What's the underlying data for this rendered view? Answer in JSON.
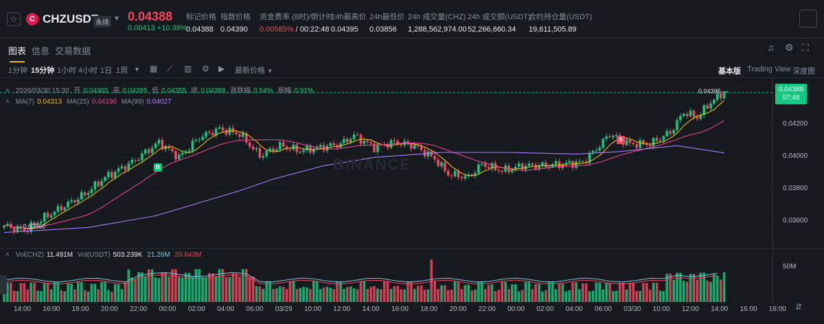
{
  "header": {
    "star_icon": "star-icon",
    "coin_glyph": "C",
    "symbol": "CHZUSDT",
    "contract_type": "永续",
    "last_price": "0.04388",
    "change_abs": "0.00413",
    "change_pct": "+10.38%",
    "stats": [
      {
        "label": "标记价格",
        "value": "0.04388"
      },
      {
        "label": "指数价格",
        "value": "0.04390"
      },
      {
        "label": "资金费率 (8时)/倒计时",
        "value_red": "0.00585%",
        "value": " / 00:22:48"
      },
      {
        "label": "24h最高价",
        "value": "0.04395"
      },
      {
        "label": "24h最低价",
        "value": "0.03856"
      },
      {
        "label": "24h 成交量(CHZ)",
        "value": "1,288,562,974.00"
      },
      {
        "label": "24h 成交额(USDT)",
        "value": "52,266,660.34"
      },
      {
        "label": "合约持仓量(USDT)",
        "value": "19,611,505.89"
      }
    ]
  },
  "tabs": [
    "图表",
    "信息",
    "交易数据"
  ],
  "toolbar": {
    "timeframes": [
      "1分钟",
      "15分钟",
      "1小时",
      "4小时",
      "1日",
      "1周"
    ],
    "active_timeframe": "15分钟",
    "price_type": "最新价格",
    "views": [
      "基本版",
      "Trading View",
      "深度图"
    ],
    "active_view": "基本版"
  },
  "legend": {
    "datetime": "2026/03/30 15:30",
    "open_label": "开",
    "open": "0.04365",
    "high_label": "高",
    "high": "0.04395",
    "low_label": "低",
    "low": "0.04355",
    "close_label": "收",
    "close": "0.04388",
    "change_label": "涨跌幅",
    "change": "0.54%",
    "amp_label": "振幅",
    "amp": "0.91%",
    "ma7_label": "MA(7)",
    "ma7": "0.04313",
    "ma25_label": "MA(25)",
    "ma25": "0.04190",
    "ma99_label": "MA(99)",
    "ma99": "0.04027",
    "vol_chz_label": "Vol(CHZ)",
    "vol_chz": "11.491M",
    "vol_usdt_label": "Vol(USDT)",
    "vol_usdt": "503.239K",
    "vol_ma1": "21.26M",
    "vol_ma2": "20.643M"
  },
  "price_tag": {
    "price": "0.04388",
    "countdown": "07:48"
  },
  "markers": {
    "high": "0.04395",
    "low": "0.03560",
    "buy": "B",
    "sell": "S"
  },
  "watermark": "BINANCE",
  "colors": {
    "up": "#0ecb81",
    "down": "#f6465d",
    "ma7": "#f0b90b",
    "ma25": "#e84393",
    "ma99": "#b17dff",
    "accent": "#f0b90b"
  },
  "chart_data": {
    "type": "candlestick",
    "price_axis_ticks": [
      "0.04200",
      "0.04000",
      "0.03800",
      "0.03600"
    ],
    "volume_axis_ticks": [
      "50M"
    ],
    "time_ticks": [
      "14:00",
      "16:00",
      "18:00",
      "20:00",
      "22:00",
      "00:00",
      "02:00",
      "04:00",
      "06:00",
      "03/29",
      "10:00",
      "12:00",
      "14:00",
      "16:00",
      "18:00",
      "20:00",
      "22:00",
      "00:00",
      "02:00",
      "04:00",
      "06:00",
      "03/30",
      "10:00",
      "12:00",
      "14:00",
      "16:00",
      "18:00"
    ],
    "ylim": [
      0.0352,
      0.044
    ],
    "ma99_path": [
      [
        0,
        0.0355
      ],
      [
        25,
        0.0358
      ],
      [
        45,
        0.0365
      ],
      [
        60,
        0.0374
      ],
      [
        70,
        0.038
      ],
      [
        80,
        0.0387
      ],
      [
        95,
        0.0395
      ],
      [
        110,
        0.04
      ],
      [
        130,
        0.0403
      ],
      [
        150,
        0.0403
      ],
      [
        170,
        0.0402
      ],
      [
        183,
        0.04035
      ],
      [
        200,
        0.0407
      ],
      [
        214,
        0.04027
      ]
    ],
    "key_points": [
      [
        0,
        0.0359
      ],
      [
        6,
        0.0356
      ],
      [
        12,
        0.0364
      ],
      [
        18,
        0.0371
      ],
      [
        24,
        0.0378
      ],
      [
        30,
        0.0388
      ],
      [
        38,
        0.0397
      ],
      [
        46,
        0.0409
      ],
      [
        52,
        0.04
      ],
      [
        58,
        0.0412
      ],
      [
        64,
        0.0417
      ],
      [
        70,
        0.0414
      ],
      [
        76,
        0.0401
      ],
      [
        82,
        0.0407
      ],
      [
        88,
        0.0404
      ],
      [
        94,
        0.0406
      ],
      [
        100,
        0.0408
      ],
      [
        104,
        0.0413
      ],
      [
        110,
        0.0406
      ],
      [
        116,
        0.0409
      ],
      [
        122,
        0.0407
      ],
      [
        128,
        0.0399
      ],
      [
        132,
        0.039
      ],
      [
        138,
        0.0388
      ],
      [
        142,
        0.0396
      ],
      [
        148,
        0.0392
      ],
      [
        154,
        0.0395
      ],
      [
        160,
        0.0395
      ],
      [
        166,
        0.0396
      ],
      [
        172,
        0.0397
      ],
      [
        176,
        0.0405
      ],
      [
        180,
        0.0414
      ],
      [
        186,
        0.0408
      ],
      [
        192,
        0.0408
      ],
      [
        198,
        0.0415
      ],
      [
        202,
        0.0427
      ],
      [
        206,
        0.0424
      ],
      [
        210,
        0.0433
      ],
      [
        214,
        0.04388
      ]
    ]
  }
}
